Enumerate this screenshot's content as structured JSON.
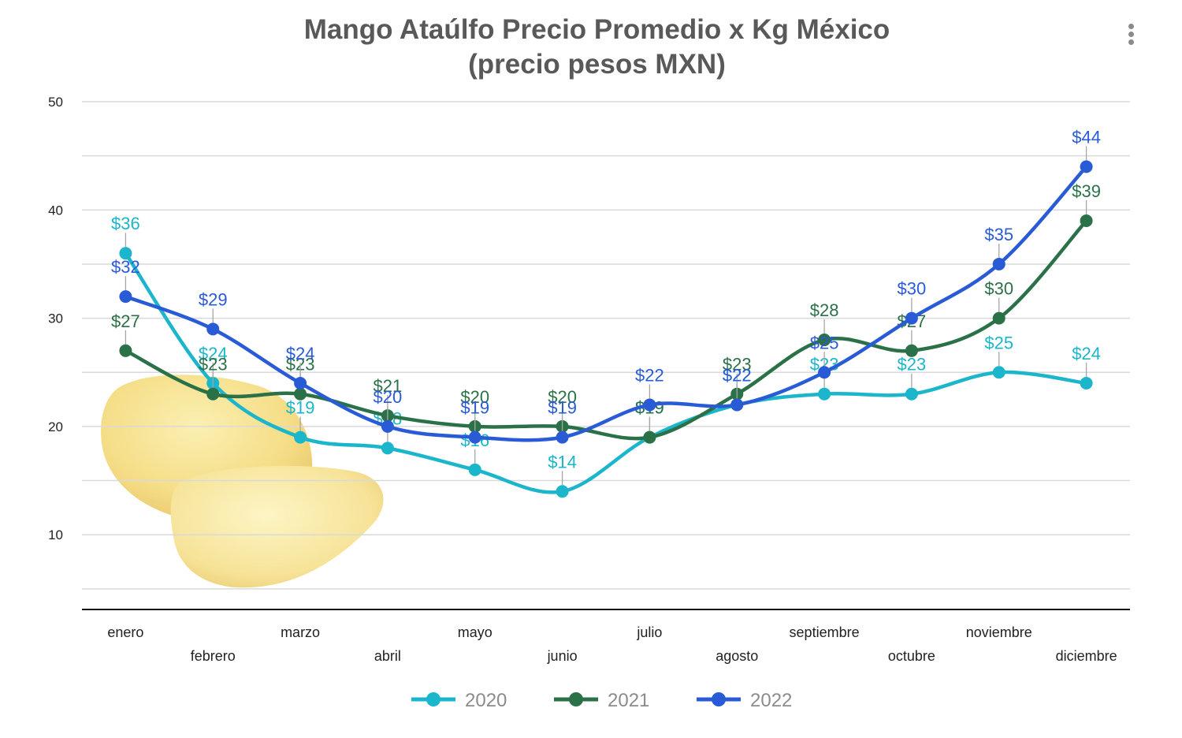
{
  "chart_data": {
    "type": "line",
    "title": "Mango Ataúlfo Precio Promedio x Kg México",
    "subtitle": "(precio pesos MXN)",
    "xlabel": "",
    "ylabel": "",
    "categories": [
      "enero",
      "febrero",
      "marzo",
      "abril",
      "mayo",
      "junio",
      "julio",
      "agosto",
      "septiembre",
      "octubre",
      "noviembre",
      "diciembre"
    ],
    "ylim": [
      0,
      50
    ],
    "yticks": [
      10,
      20,
      30,
      40,
      50
    ],
    "grid": true,
    "legend_position": "bottom",
    "value_prefix": "$",
    "series": [
      {
        "name": "2020",
        "color": "#1bb5cc",
        "values": [
          36,
          24,
          19,
          18,
          16,
          14,
          19,
          22,
          23,
          23,
          25,
          24
        ]
      },
      {
        "name": "2021",
        "color": "#2b7148",
        "values": [
          27,
          23,
          23,
          21,
          20,
          20,
          19,
          23,
          28,
          27,
          30,
          39
        ]
      },
      {
        "name": "2022",
        "color": "#2a5bd7",
        "values": [
          32,
          29,
          24,
          20,
          19,
          19,
          22,
          22,
          25,
          30,
          35,
          44
        ]
      }
    ]
  },
  "icons": {
    "menu": "more-vert-icon",
    "background_image": "mango-illustration"
  }
}
